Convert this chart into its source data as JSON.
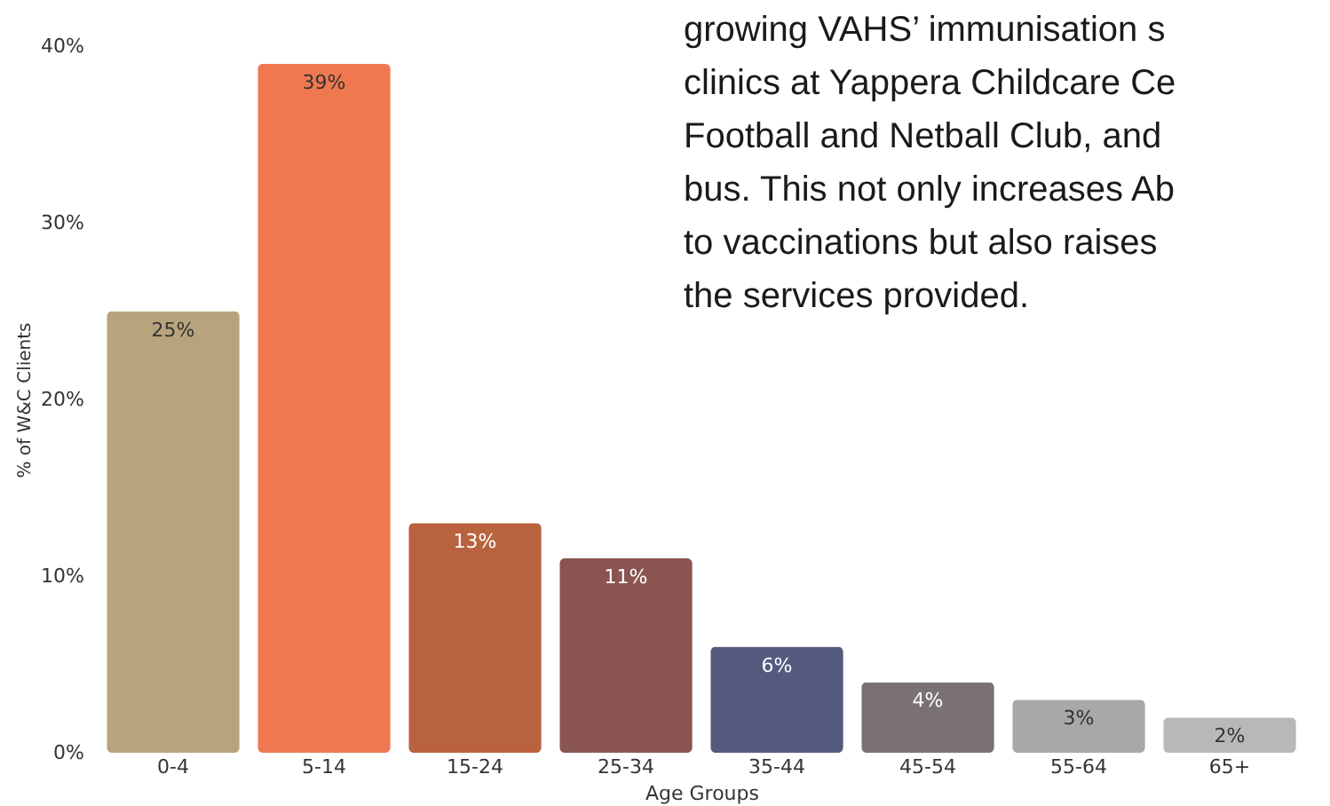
{
  "chart_data": {
    "type": "bar",
    "xlabel": "Age Groups",
    "ylabel": "% of W&C Clients",
    "categories": [
      "0-4",
      "5-14",
      "15-24",
      "25-34",
      "35-44",
      "45-54",
      "55-64",
      "65+"
    ],
    "values": [
      25,
      39,
      13,
      11,
      6,
      4,
      3,
      2
    ],
    "colors": [
      "#b8a47c",
      "#f07850",
      "#b9623e",
      "#8a5550",
      "#545a7e",
      "#7a7272",
      "#a8a8a8",
      "#b8b8b8"
    ],
    "value_labels": [
      "25%",
      "39%",
      "13%",
      "11%",
      "6%",
      "4%",
      "3%",
      "2%"
    ],
    "ylim": [
      0,
      40
    ],
    "yticks": [
      {
        "value": 0,
        "label": "0%"
      },
      {
        "value": 10,
        "label": "10%"
      },
      {
        "value": 20,
        "label": "20%"
      },
      {
        "value": 30,
        "label": "30%"
      },
      {
        "value": 40,
        "label": "40%"
      }
    ],
    "grid": false,
    "annotations": [
      "growing VAHS’ immunisation s\nclinics at Yappera Childcare Ce\nFootball and Netball Club, and\nbus. This not only increases Ab\nto vaccinations but also raises\nthe services provided."
    ]
  }
}
